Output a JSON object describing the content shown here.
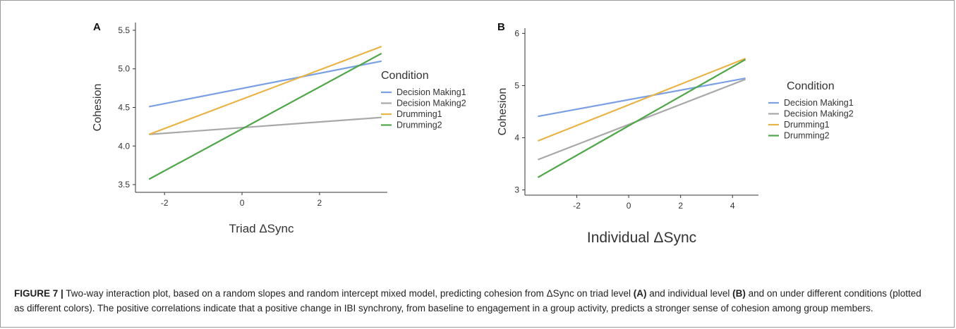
{
  "chart_data": [
    {
      "type": "line",
      "panel_label": "A",
      "xlabel": "Triad ΔSync",
      "ylabel": "Cohesion",
      "xlim": [
        -2.75,
        3.75
      ],
      "ylim": [
        3.4,
        5.6
      ],
      "xticks": [
        -2,
        0,
        2
      ],
      "yticks": [
        3.5,
        4.0,
        4.5,
        5.0,
        5.5
      ],
      "ytick_labels": [
        "3.5",
        "4.0",
        "4.5",
        "5.0",
        "5.5"
      ],
      "legend_title": "Condition",
      "legend_position": "right",
      "series": [
        {
          "name": "Decision Making1",
          "color": "#7a9fe3",
          "x": [
            -2.4,
            3.6
          ],
          "y": [
            4.51,
            5.1
          ]
        },
        {
          "name": "Decision Making2",
          "color": "#a8a8a8",
          "x": [
            -2.4,
            3.6
          ],
          "y": [
            4.15,
            4.37
          ]
        },
        {
          "name": "Drumming1",
          "color": "#e8b448",
          "x": [
            -2.4,
            3.6
          ],
          "y": [
            4.15,
            5.29
          ]
        },
        {
          "name": "Drumming2",
          "color": "#4fa648",
          "x": [
            -2.4,
            3.6
          ],
          "y": [
            3.57,
            5.2
          ]
        }
      ]
    },
    {
      "type": "line",
      "panel_label": "B",
      "xlabel": "Individual ΔSync",
      "ylabel": "Cohesion",
      "xlim": [
        -4.0,
        5.0
      ],
      "ylim": [
        2.9,
        6.1
      ],
      "xticks": [
        -2,
        0,
        2,
        4
      ],
      "yticks": [
        3,
        4,
        5,
        6
      ],
      "ytick_labels": [
        "3",
        "4",
        "5",
        "6"
      ],
      "legend_title": "Condition",
      "legend_position": "right",
      "series": [
        {
          "name": "Decision Making1",
          "color": "#7a9fe3",
          "x": [
            -3.5,
            4.5
          ],
          "y": [
            4.41,
            5.14
          ]
        },
        {
          "name": "Decision Making2",
          "color": "#a8a8a8",
          "x": [
            -3.5,
            4.5
          ],
          "y": [
            3.58,
            5.12
          ]
        },
        {
          "name": "Drumming1",
          "color": "#e8b448",
          "x": [
            -3.5,
            4.5
          ],
          "y": [
            3.94,
            5.52
          ]
        },
        {
          "name": "Drumming2",
          "color": "#4fa648",
          "x": [
            -3.5,
            4.5
          ],
          "y": [
            3.24,
            5.5
          ]
        }
      ]
    }
  ],
  "caption": {
    "label": "FIGURE 7 |",
    "text_1": " Two-way interaction plot, based on a random slopes and random intercept mixed model, predicting cohesion from ΔSync on triad level ",
    "ref_a": "(A)",
    "text_2": " and individual level ",
    "ref_b": "(B)",
    "text_3": " and on under different conditions (plotted as different colors). The positive correlations indicate that a positive change in IBI synchrony, from baseline to engagement in a group activity, predicts a stronger sense of cohesion among group members."
  }
}
